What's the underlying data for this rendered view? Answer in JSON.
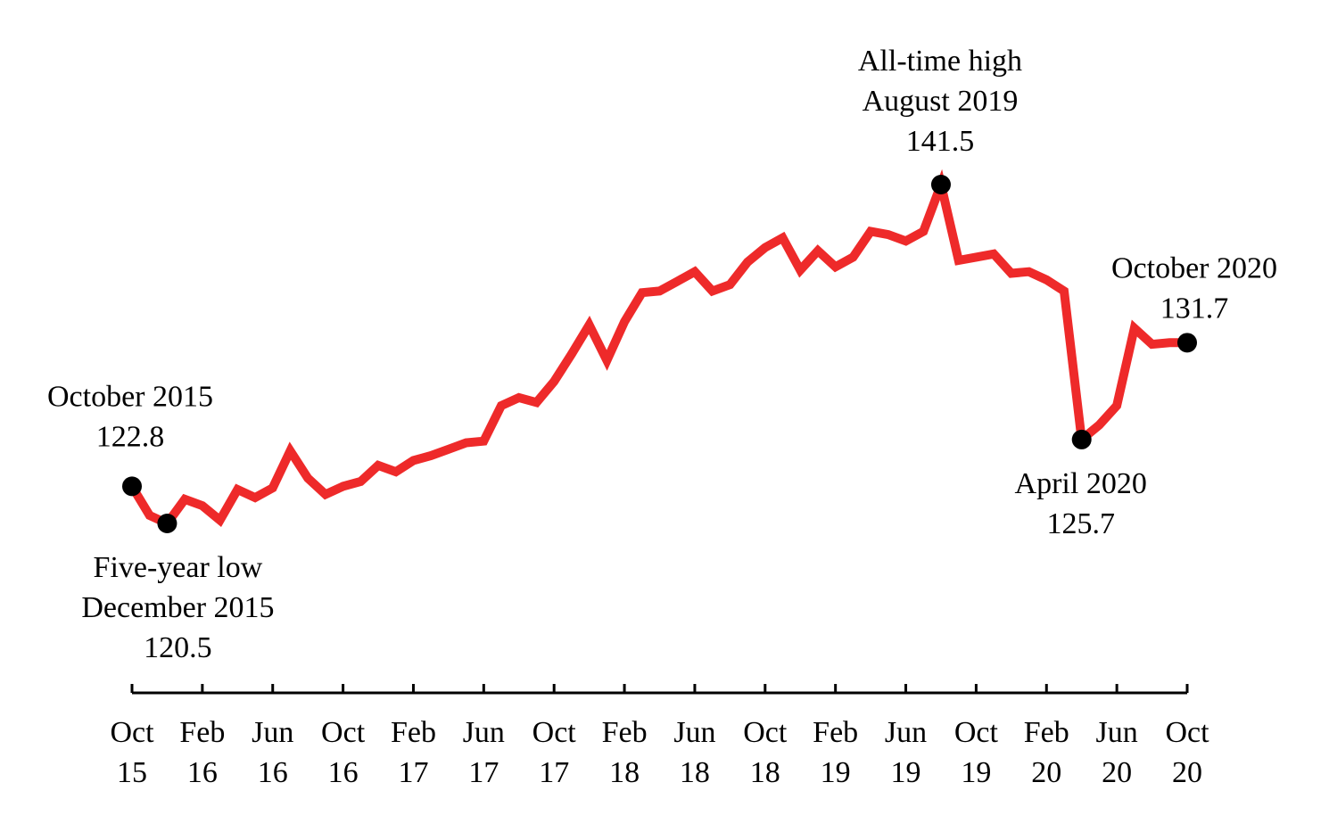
{
  "chart_data": {
    "type": "line",
    "title": "",
    "xlabel": "",
    "ylabel": "",
    "ylim": [
      115,
      150
    ],
    "grid": false,
    "legend": "none",
    "line_color": "#ee2a2a",
    "marker_color": "#000000",
    "x_tick_labels": [
      {
        "month": "Oct",
        "year": "15",
        "date": "2015-10"
      },
      {
        "month": "Feb",
        "year": "16",
        "date": "2016-02"
      },
      {
        "month": "Jun",
        "year": "16",
        "date": "2016-06"
      },
      {
        "month": "Oct",
        "year": "16",
        "date": "2016-10"
      },
      {
        "month": "Feb",
        "year": "17",
        "date": "2017-02"
      },
      {
        "month": "Jun",
        "year": "17",
        "date": "2017-06"
      },
      {
        "month": "Oct",
        "year": "17",
        "date": "2017-10"
      },
      {
        "month": "Feb",
        "year": "18",
        "date": "2018-02"
      },
      {
        "month": "Jun",
        "year": "18",
        "date": "2018-06"
      },
      {
        "month": "Oct",
        "year": "18",
        "date": "2018-10"
      },
      {
        "month": "Feb",
        "year": "19",
        "date": "2019-02"
      },
      {
        "month": "Jun",
        "year": "19",
        "date": "2019-06"
      },
      {
        "month": "Oct",
        "year": "19",
        "date": "2019-10"
      },
      {
        "month": "Feb",
        "year": "20",
        "date": "2020-02"
      },
      {
        "month": "Jun",
        "year": "20",
        "date": "2020-06"
      },
      {
        "month": "Oct",
        "year": "20",
        "date": "2020-10"
      }
    ],
    "series": [
      {
        "x": [
          "2015-10",
          "2015-11",
          "2015-12",
          "2016-01",
          "2016-02",
          "2016-03",
          "2016-04",
          "2016-05",
          "2016-06",
          "2016-07",
          "2016-08",
          "2016-09",
          "2016-10",
          "2016-11",
          "2016-12",
          "2017-01",
          "2017-02",
          "2017-03",
          "2017-04",
          "2017-05",
          "2017-06",
          "2017-07",
          "2017-08",
          "2017-09",
          "2017-10",
          "2017-11",
          "2017-12",
          "2018-01",
          "2018-02",
          "2018-03",
          "2018-04",
          "2018-05",
          "2018-06",
          "2018-07",
          "2018-08",
          "2018-09",
          "2018-10",
          "2018-11",
          "2018-12",
          "2019-01",
          "2019-02",
          "2019-03",
          "2019-04",
          "2019-05",
          "2019-06",
          "2019-07",
          "2019-08",
          "2019-09",
          "2019-10",
          "2019-11",
          "2019-12",
          "2020-01",
          "2020-02",
          "2020-03",
          "2020-04",
          "2020-05",
          "2020-06",
          "2020-07",
          "2020-08",
          "2020-09",
          "2020-10"
        ],
        "values": [
          122.8,
          121.0,
          120.5,
          122.0,
          121.6,
          120.7,
          122.6,
          122.1,
          122.7,
          125.0,
          123.3,
          122.3,
          122.8,
          123.1,
          124.1,
          123.7,
          124.4,
          124.7,
          125.1,
          125.5,
          125.6,
          127.8,
          128.3,
          128.0,
          129.3,
          131.0,
          132.8,
          130.6,
          133.0,
          134.8,
          134.9,
          135.5,
          136.1,
          134.9,
          135.3,
          136.7,
          137.6,
          138.2,
          136.2,
          137.4,
          136.4,
          137.0,
          138.6,
          138.4,
          138.0,
          138.6,
          141.5,
          136.8,
          137.0,
          137.2,
          136.0,
          136.1,
          135.6,
          134.9,
          125.7,
          126.6,
          127.8,
          132.6,
          131.6,
          131.7,
          131.7
        ]
      }
    ],
    "annotations": [
      {
        "date": "2015-10",
        "value": 122.8,
        "lines": [
          "October 2015",
          "122.8"
        ]
      },
      {
        "date": "2015-12",
        "value": 120.5,
        "lines": [
          "Five-year low",
          "December 2015",
          "120.5"
        ]
      },
      {
        "date": "2019-08",
        "value": 141.5,
        "lines": [
          "All-time high",
          "August 2019",
          "141.5"
        ]
      },
      {
        "date": "2020-04",
        "value": 125.7,
        "lines": [
          "April 2020",
          "125.7"
        ]
      },
      {
        "date": "2020-10",
        "value": 131.7,
        "lines": [
          "October 2020",
          "131.7"
        ]
      }
    ]
  }
}
